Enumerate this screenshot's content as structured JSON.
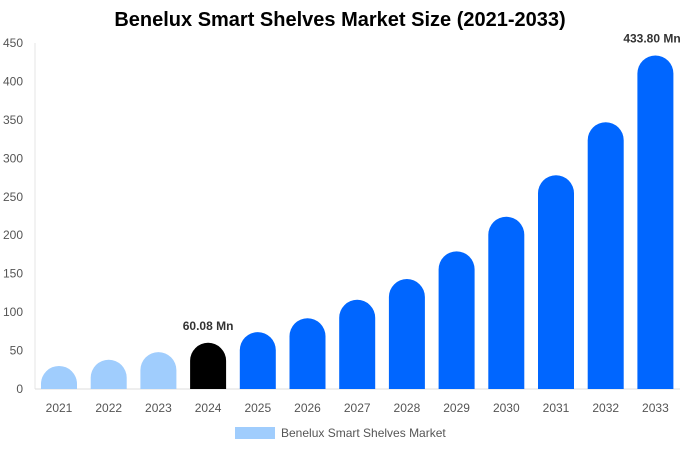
{
  "chart_data": {
    "type": "bar",
    "title": "Benelux Smart Shelves Market Size (2021-2033)",
    "categories": [
      "2021",
      "2022",
      "2023",
      "2024",
      "2025",
      "2026",
      "2027",
      "2028",
      "2029",
      "2030",
      "2031",
      "2032",
      "2033"
    ],
    "series": [
      {
        "name": "Benelux Smart Shelves Market",
        "values": [
          30,
          38,
          48,
          60.08,
          74,
          92,
          116,
          143,
          179,
          224,
          278,
          347,
          433.8
        ]
      }
    ],
    "data_labels": [
      {
        "index": 3,
        "text": "60.08 Mn"
      },
      {
        "index": 12,
        "text": "433.80 Mn"
      }
    ],
    "yticks": [
      0,
      50,
      100,
      150,
      200,
      250,
      300,
      350,
      400,
      450
    ],
    "ylim": [
      0,
      450
    ],
    "grid": false,
    "legend_placement": "bottom",
    "colors": {
      "historical": "#a0cdfd",
      "current": "#000000",
      "forecast": "#0066ff"
    }
  }
}
